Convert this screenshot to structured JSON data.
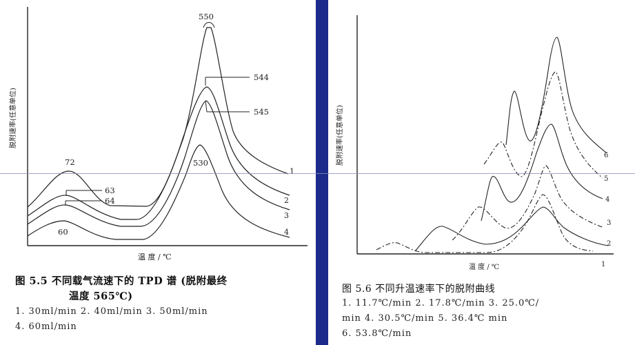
{
  "left_figure": {
    "caption_line1": "图 5.5   不同载气流速下的 TPD 谱 (脱附最终",
    "caption_line2": "温度 565℃)",
    "legend_line1": "1. 30ml/min    2. 40ml/min    3. 50ml/min",
    "legend_line2": "4. 60ml/min",
    "chart_data": {
      "type": "line",
      "xlabel": "温 度 / ℃",
      "ylabel": "",
      "curves": [
        {
          "id": "1",
          "low_peak": "72",
          "high_peak": "550"
        },
        {
          "id": "2",
          "low_peak": "63",
          "high_peak": "544"
        },
        {
          "id": "3",
          "low_peak": "64",
          "high_peak": "545"
        },
        {
          "id": "4",
          "low_peak": "60",
          "high_peak": "530"
        }
      ],
      "peak_labels": [
        "550",
        "544",
        "545",
        "530",
        "72",
        "63",
        "64",
        "60"
      ],
      "curve_numbers": [
        "1",
        "2",
        "3",
        "4"
      ]
    }
  },
  "right_figure": {
    "caption_line1": "图 5.6     不同升温速率下的脱附曲线",
    "legend_line1": "1. 11.7℃/min   2. 17.8℃/min   3. 25.0℃/",
    "legend_line2": "min    4.   30.5℃/min     5.   36.4℃ min",
    "legend_line3": "6. 53.8℃/min",
    "chart_data": {
      "type": "line",
      "xlabel": "温 度 / ℃",
      "ylabel": "脱附速率(任意单位)",
      "series": [
        {
          "name": "1",
          "style": "dashdot"
        },
        {
          "name": "2",
          "style": "solid"
        },
        {
          "name": "3",
          "style": "dashdot"
        },
        {
          "name": "4",
          "style": "solid"
        },
        {
          "name": "5",
          "style": "dashdot"
        },
        {
          "name": "6",
          "style": "solid"
        }
      ]
    }
  },
  "left_ylabel": "脱附速率(任意单位)",
  "colors": {
    "background": "#1c2a8c",
    "paper": "#ffffff",
    "ink": "#222222"
  }
}
